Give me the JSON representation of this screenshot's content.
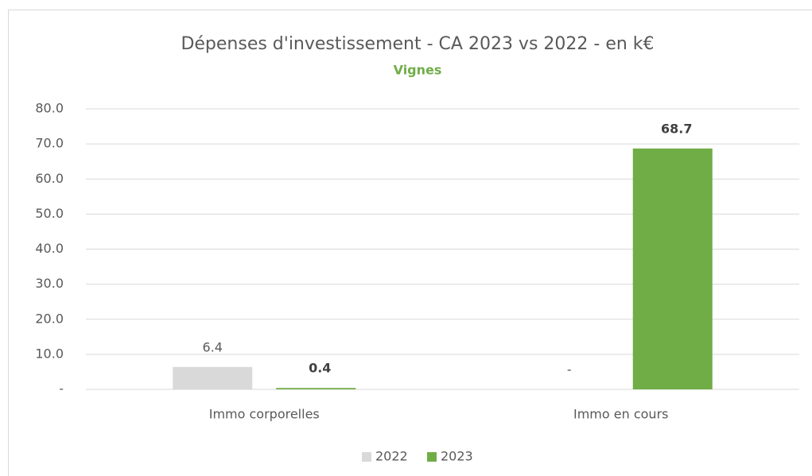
{
  "chart_data": {
    "type": "bar",
    "title": "Dépenses d'investissement - CA 2023 vs 2022 - en k€",
    "subtitle": "Vignes",
    "categories": [
      "Immo corporelles",
      "Immo en cours"
    ],
    "series": [
      {
        "name": "2022",
        "color": "#d9d9d9",
        "values": [
          6.4,
          0
        ],
        "value_labels": [
          "6.4",
          "-"
        ]
      },
      {
        "name": "2023",
        "color": "#70ad47",
        "values": [
          0.4,
          68.7
        ],
        "value_labels": [
          "0.4",
          "68.7"
        ]
      }
    ],
    "ylim": [
      0,
      80
    ],
    "yticks": [
      {
        "value": 0,
        "label": "-"
      },
      {
        "value": 10,
        "label": "10.0"
      },
      {
        "value": 20,
        "label": "20.0"
      },
      {
        "value": 30,
        "label": "30.0"
      },
      {
        "value": 40,
        "label": "40.0"
      },
      {
        "value": 50,
        "label": "50.0"
      },
      {
        "value": 60,
        "label": "60.0"
      },
      {
        "value": 70,
        "label": "70.0"
      },
      {
        "value": 80,
        "label": "80.0"
      }
    ],
    "grid": true,
    "legend": "bottom"
  }
}
